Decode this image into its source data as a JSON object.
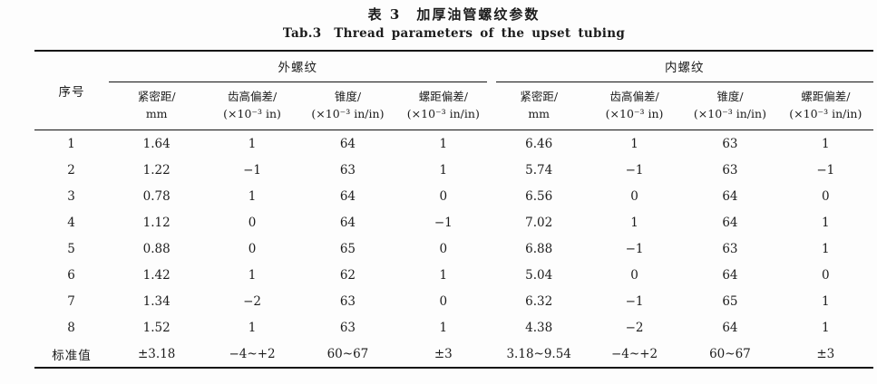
{
  "title_cn": "表 3　加厚油管螺纹参数",
  "title_en": "Tab.3　Thread parameters of the upset tubing",
  "table": {
    "corner_header": "序号",
    "groups": [
      {
        "label": "外螺纹",
        "columns": [
          {
            "line1": "紧密距/",
            "line2": "mm"
          },
          {
            "line1": "齿高偏差/",
            "line2": "(×10⁻³ in)"
          },
          {
            "line1": "锥度/",
            "line2": "(×10⁻³ in/in)"
          },
          {
            "line1": "螺距偏差/",
            "line2": "(×10⁻³ in/in)"
          }
        ]
      },
      {
        "label": "内螺纹",
        "columns": [
          {
            "line1": "紧密距/",
            "line2": "mm"
          },
          {
            "line1": "齿高偏差/",
            "line2": "(×10⁻³ in)"
          },
          {
            "line1": "锥度/",
            "line2": "(×10⁻³ in/in)"
          },
          {
            "line1": "螺距偏差/",
            "line2": "(×10⁻³ in/in)"
          }
        ]
      }
    ],
    "rows": [
      {
        "id": "1",
        "values": [
          "1.64",
          "1",
          "64",
          "1",
          "6.46",
          "1",
          "63",
          "1"
        ]
      },
      {
        "id": "2",
        "values": [
          "1.22",
          "−1",
          "63",
          "1",
          "5.74",
          "−1",
          "63",
          "−1"
        ]
      },
      {
        "id": "3",
        "values": [
          "0.78",
          "1",
          "64",
          "0",
          "6.56",
          "0",
          "64",
          "0"
        ]
      },
      {
        "id": "4",
        "values": [
          "1.12",
          "0",
          "64",
          "−1",
          "7.02",
          "1",
          "64",
          "1"
        ]
      },
      {
        "id": "5",
        "values": [
          "0.88",
          "0",
          "65",
          "0",
          "6.88",
          "−1",
          "63",
          "1"
        ]
      },
      {
        "id": "6",
        "values": [
          "1.42",
          "1",
          "62",
          "1",
          "5.04",
          "0",
          "64",
          "0"
        ]
      },
      {
        "id": "7",
        "values": [
          "1.34",
          "−2",
          "63",
          "0",
          "6.32",
          "−1",
          "65",
          "1"
        ]
      },
      {
        "id": "8",
        "values": [
          "1.52",
          "1",
          "63",
          "1",
          "4.38",
          "−2",
          "64",
          "1"
        ]
      },
      {
        "id": "标准值",
        "values": [
          "±3.18",
          "−4~+2",
          "60~67",
          "±3",
          "3.18~9.54",
          "−4~+2",
          "60~67",
          "±3"
        ]
      }
    ]
  }
}
